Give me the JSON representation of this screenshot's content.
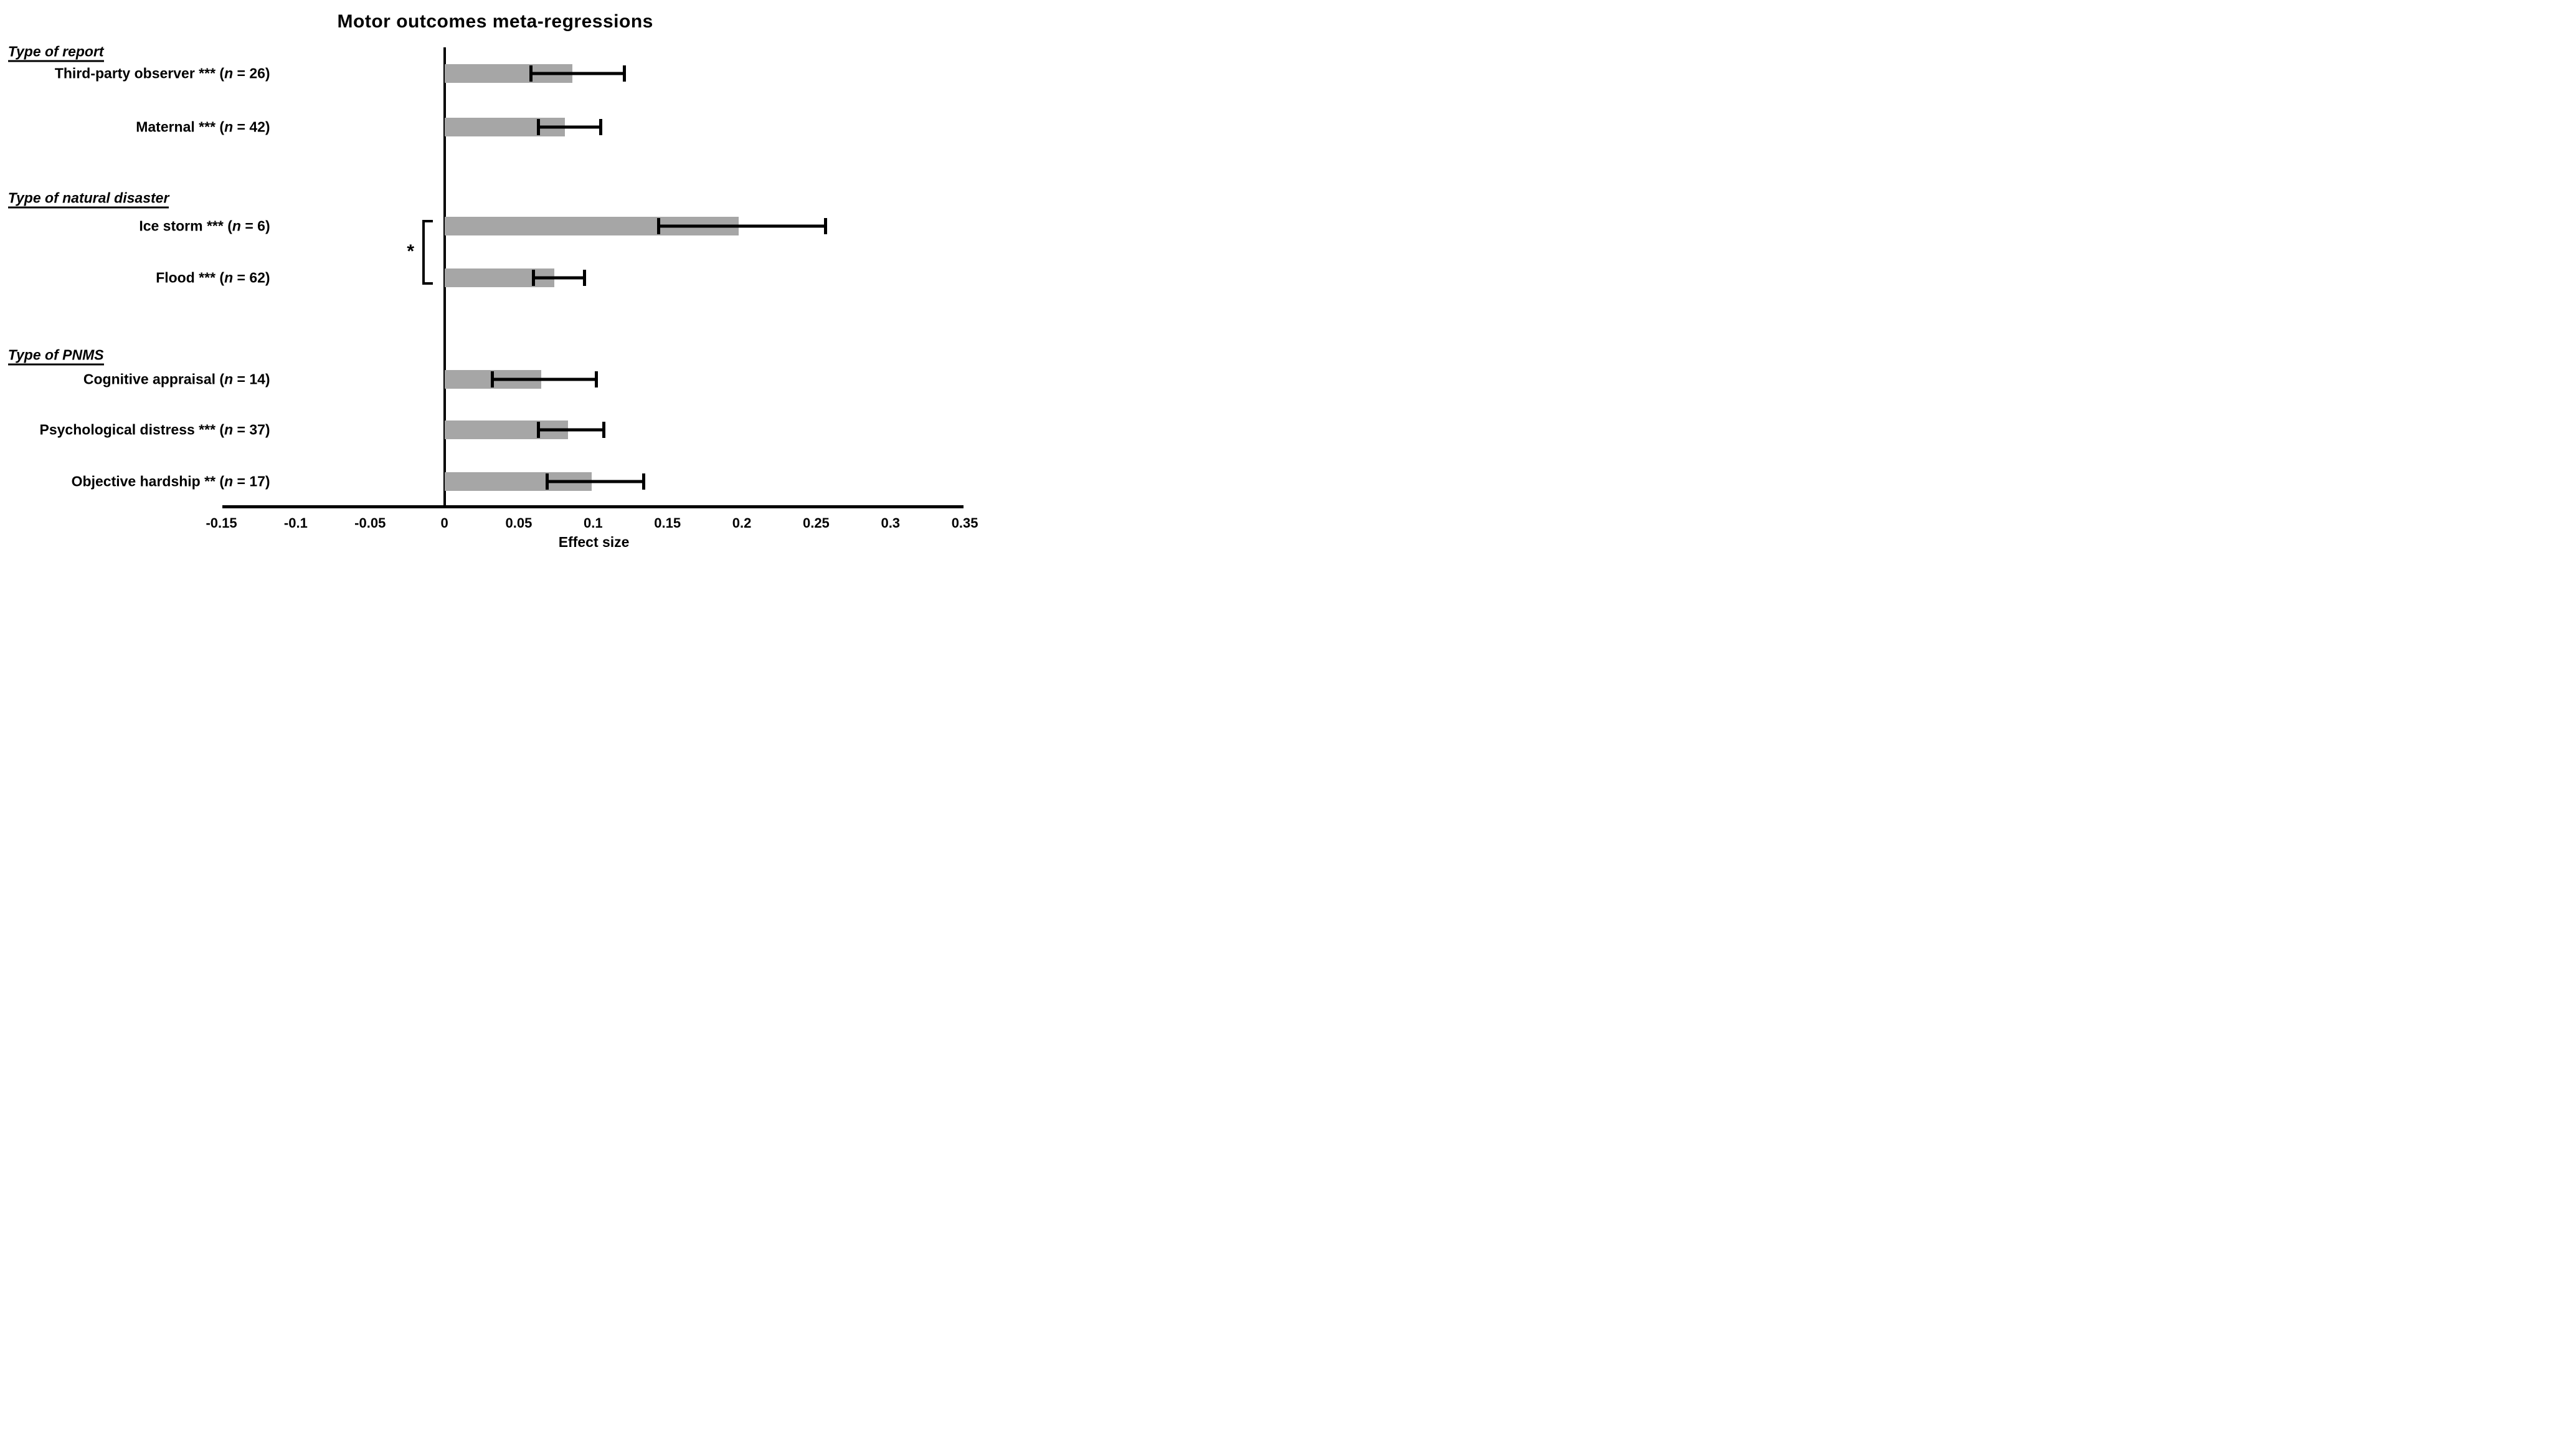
{
  "chart_data": {
    "type": "bar",
    "orientation": "horizontal",
    "title": "Motor outcomes meta-regressions",
    "xlabel": "Effect size",
    "bar_color": "#a6a6a6",
    "axis_color": "#000000",
    "grid": false,
    "legend": false,
    "x_axis": {
      "min": -0.15,
      "max": 0.35,
      "tick_values": [
        -0.15,
        -0.1,
        -0.05,
        0,
        0.05,
        0.1,
        0.15,
        0.2,
        0.25,
        0.3,
        0.35
      ],
      "tick_labels": [
        "-0.15",
        "-0.1",
        "-0.05",
        "0",
        "0.05",
        "0.1",
        "0.15",
        "0.2",
        "0.25",
        "0.3",
        "0.35"
      ]
    },
    "groups": [
      {
        "header": "Type of report",
        "bars": [
          {
            "label_pre": "Third-party observer *** (",
            "n_char": "n",
            "label_post": " = 26)",
            "n": 26,
            "significance": "***",
            "value": 0.086,
            "ci_low": 0.057,
            "ci_high": 0.118
          },
          {
            "label_pre": "Maternal *** (",
            "n_char": "n",
            "label_post": " = 42)",
            "n": 42,
            "significance": "***",
            "value": 0.081,
            "ci_low": 0.062,
            "ci_high": 0.102
          }
        ]
      },
      {
        "header": "Type of natural disaster",
        "bars": [
          {
            "label_pre": "Ice storm *** (",
            "n_char": "n",
            "label_post": " = 6)",
            "n": 6,
            "significance": "***",
            "value": 0.198,
            "ci_low": 0.143,
            "ci_high": 0.253
          },
          {
            "label_pre": "Flood *** (",
            "n_char": "n",
            "label_post": " = 62)",
            "n": 62,
            "significance": "***",
            "value": 0.074,
            "ci_low": 0.059,
            "ci_high": 0.091
          }
        ]
      },
      {
        "header": "Type of PNMS",
        "bars": [
          {
            "label_pre": "Cognitive appraisal (",
            "n_char": "n",
            "label_post": " = 14)",
            "n": 14,
            "significance": "",
            "value": 0.065,
            "ci_low": 0.031,
            "ci_high": 0.099
          },
          {
            "label_pre": "Psychological distress *** (",
            "n_char": "n",
            "label_post": " = 37)",
            "n": 37,
            "significance": "***",
            "value": 0.083,
            "ci_low": 0.062,
            "ci_high": 0.104
          },
          {
            "label_pre": "Objective hardship ** (",
            "n_char": "n",
            "label_post": " = 17)",
            "n": 17,
            "significance": "**",
            "value": 0.099,
            "ci_low": 0.068,
            "ci_high": 0.131
          }
        ]
      }
    ],
    "comparison_bracket": {
      "between": [
        "Ice storm",
        "Flood"
      ],
      "label": "*"
    }
  }
}
